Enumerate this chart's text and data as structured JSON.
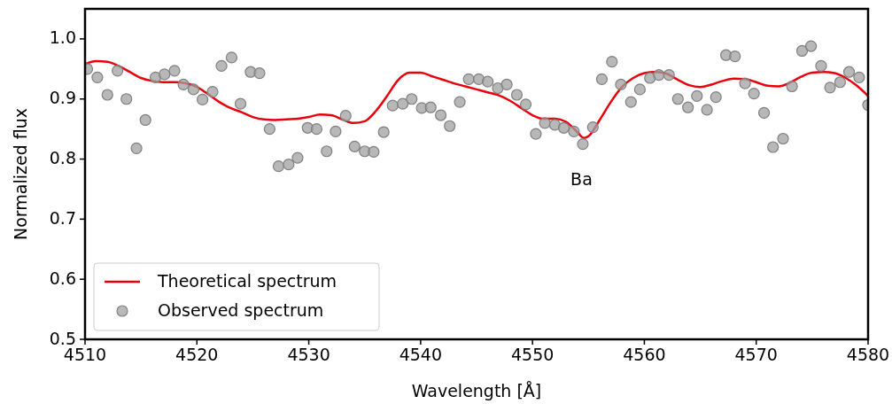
{
  "chart_data": {
    "type": "line",
    "xlabel": "Wavelength [Å]",
    "ylabel": "Normalized flux",
    "xlim": [
      4510,
      4580
    ],
    "xticks": [
      4510,
      4520,
      4530,
      4540,
      4550,
      4560,
      4570,
      4580
    ],
    "ylim": [
      0.5,
      1.05
    ],
    "yticks": [
      0.5,
      0.6,
      0.7,
      0.8,
      0.9,
      {
        "value": 1,
        "label": "1.0"
      }
    ],
    "grid": false,
    "legend": "bottom left",
    "annotations": [
      "Ba"
    ],
    "series": [
      {
        "name": "Theoretical spectrum",
        "type": "line",
        "color": "#e8000b",
        "marker": "none",
        "line_style": "solid",
        "x": [
          4510,
          4511,
          4512,
          4513,
          4514,
          4515,
          4516,
          4517,
          4518,
          4519,
          4520,
          4521,
          4522,
          4523,
          4524,
          4525,
          4526,
          4527,
          4528,
          4529,
          4530,
          4531,
          4532,
          4533,
          4534,
          4535,
          4536,
          4537,
          4538,
          4539,
          4540,
          4541,
          4542,
          4543,
          4544,
          4545,
          4546,
          4547,
          4548,
          4549,
          4550,
          4551,
          4552,
          4553,
          4554,
          4554.6,
          4555,
          4556,
          4557,
          4558,
          4559,
          4560,
          4561,
          4562,
          4563,
          4564,
          4565,
          4566,
          4567,
          4568,
          4569,
          4570,
          4571,
          4572,
          4573,
          4574,
          4575,
          4576,
          4577,
          4578,
          4579,
          4580
        ],
        "values": [
          0.958,
          0.963,
          0.962,
          0.955,
          0.945,
          0.935,
          0.93,
          0.928,
          0.928,
          0.926,
          0.92,
          0.908,
          0.895,
          0.885,
          0.878,
          0.87,
          0.866,
          0.865,
          0.866,
          0.867,
          0.87,
          0.874,
          0.873,
          0.866,
          0.86,
          0.863,
          0.88,
          0.905,
          0.932,
          0.944,
          0.944,
          0.938,
          0.932,
          0.926,
          0.921,
          0.916,
          0.911,
          0.906,
          0.897,
          0.885,
          0.873,
          0.867,
          0.867,
          0.862,
          0.845,
          0.835,
          0.838,
          0.865,
          0.895,
          0.92,
          0.935,
          0.943,
          0.945,
          0.942,
          0.932,
          0.923,
          0.92,
          0.924,
          0.93,
          0.934,
          0.933,
          0.928,
          0.922,
          0.921,
          0.927,
          0.937,
          0.944,
          0.945,
          0.943,
          0.935,
          0.922,
          0.905
        ]
      },
      {
        "name": "Observed spectrum",
        "type": "scatter",
        "color": "#a0a0a0",
        "marker": "circle",
        "x": [
          4510.2,
          4511.1,
          4512.0,
          4512.9,
          4513.7,
          4514.6,
          4515.4,
          4516.3,
          4517.1,
          4518.0,
          4518.8,
          4519.7,
          4520.5,
          4521.4,
          4522.2,
          4523.1,
          4523.9,
          4524.8,
          4525.6,
          4526.5,
          4527.3,
          4528.2,
          4529.0,
          4529.9,
          4530.7,
          4531.6,
          4532.4,
          4533.3,
          4534.1,
          4535.0,
          4535.8,
          4536.7,
          4537.5,
          4538.4,
          4539.2,
          4540.1,
          4540.9,
          4541.8,
          4542.6,
          4543.5,
          4544.3,
          4545.2,
          4546.0,
          4546.9,
          4547.7,
          4548.6,
          4549.4,
          4550.3,
          4551.1,
          4552.0,
          4552.8,
          4553.7,
          4554.5,
          4555.4,
          4556.2,
          4557.1,
          4557.9,
          4558.8,
          4559.6,
          4560.5,
          4561.3,
          4562.2,
          4563.0,
          4563.9,
          4564.7,
          4565.6,
          4566.4,
          4567.3,
          4568.1,
          4569.0,
          4569.8,
          4570.7,
          4571.5,
          4572.4,
          4573.2,
          4574.1,
          4574.9,
          4575.8,
          4576.6,
          4577.5,
          4578.3,
          4579.2,
          4580.0
        ],
        "values": [
          0.95,
          0.936,
          0.907,
          0.947,
          0.9,
          0.818,
          0.865,
          0.936,
          0.941,
          0.947,
          0.924,
          0.916,
          0.899,
          0.912,
          0.955,
          0.969,
          0.892,
          0.945,
          0.943,
          0.85,
          0.788,
          0.791,
          0.802,
          0.852,
          0.85,
          0.813,
          0.846,
          0.872,
          0.821,
          0.813,
          0.812,
          0.845,
          0.889,
          0.892,
          0.9,
          0.885,
          0.886,
          0.873,
          0.855,
          0.895,
          0.933,
          0.933,
          0.929,
          0.918,
          0.924,
          0.907,
          0.891,
          0.842,
          0.86,
          0.857,
          0.852,
          0.846,
          0.825,
          0.853,
          0.933,
          0.962,
          0.924,
          0.895,
          0.916,
          0.935,
          0.94,
          0.94,
          0.9,
          0.886,
          0.905,
          0.882,
          0.903,
          0.973,
          0.971,
          0.926,
          0.909,
          0.877,
          0.82,
          0.834,
          0.921,
          0.98,
          0.988,
          0.955,
          0.919,
          0.928,
          0.945,
          0.936,
          0.89
        ]
      }
    ]
  }
}
